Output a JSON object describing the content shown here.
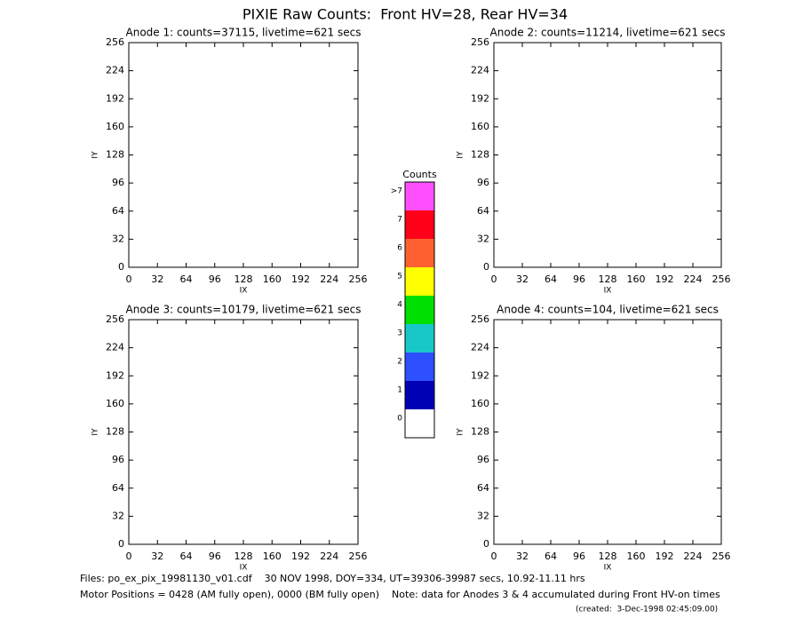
{
  "title": "PIXIE Raw Counts:  Front HV=28, Rear HV=34",
  "chart_data": [
    {
      "type": "heatmap",
      "title": "Anode 1: counts=37115, livetime=621 secs",
      "xlabel": "IX",
      "ylabel": "IY",
      "xlim": [
        0,
        256
      ],
      "ylim": [
        0,
        256
      ],
      "xticks": [
        0,
        32,
        64,
        96,
        128,
        160,
        192,
        224,
        256
      ],
      "yticks": [
        0,
        32,
        64,
        96,
        128,
        160,
        192,
        224,
        256
      ]
    },
    {
      "type": "heatmap",
      "title": "Anode 2: counts=11214, livetime=621 secs",
      "xlabel": "IX",
      "ylabel": "IY",
      "xlim": [
        0,
        256
      ],
      "ylim": [
        0,
        256
      ],
      "xticks": [
        0,
        32,
        64,
        96,
        128,
        160,
        192,
        224,
        256
      ],
      "yticks": [
        0,
        32,
        64,
        96,
        128,
        160,
        192,
        224,
        256
      ]
    },
    {
      "type": "heatmap",
      "title": "Anode 3: counts=10179, livetime=621 secs",
      "xlabel": "IX",
      "ylabel": "IY",
      "xlim": [
        0,
        256
      ],
      "ylim": [
        0,
        256
      ],
      "xticks": [
        0,
        32,
        64,
        96,
        128,
        160,
        192,
        224,
        256
      ],
      "yticks": [
        0,
        32,
        64,
        96,
        128,
        160,
        192,
        224,
        256
      ]
    },
    {
      "type": "heatmap",
      "title": "Anode 4: counts=104, livetime=621 secs",
      "xlabel": "IX",
      "ylabel": "IY",
      "xlim": [
        0,
        256
      ],
      "ylim": [
        0,
        256
      ],
      "xticks": [
        0,
        32,
        64,
        96,
        128,
        160,
        192,
        224,
        256
      ],
      "yticks": [
        0,
        32,
        64,
        96,
        128,
        160,
        192,
        224,
        256
      ]
    },
    {
      "type": "colorbar",
      "title": "Counts",
      "categories": [
        "0",
        "1",
        "2",
        "3",
        "4",
        "5",
        "6",
        "7",
        ">7"
      ],
      "colors": [
        "#ffffff",
        "#0000b4",
        "#2c50ff",
        "#18c8c8",
        "#00e000",
        "#ffff00",
        "#ff6030",
        "#ff0018",
        "#ff50ff"
      ]
    }
  ],
  "footer": {
    "line1": "Files: po_ex_pix_19981130_v01.cdf    30 NOV 1998, DOY=334, UT=39306-39987 secs, 10.92-11.11 hrs",
    "line2": "Motor Positions = 0428 (AM fully open), 0000 (BM fully open)    Note: data for Anodes 3 & 4 accumulated during Front HV-on times",
    "created": "(created:  3-Dec-1998 02:45:09.00)"
  }
}
